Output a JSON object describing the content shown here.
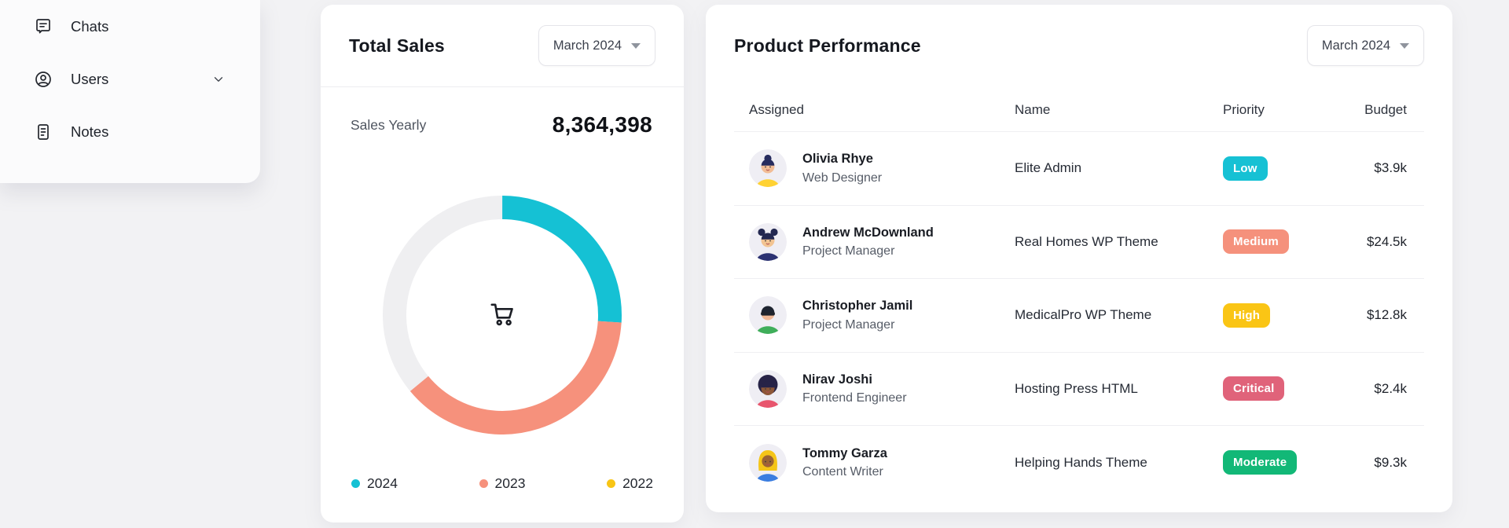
{
  "page": {
    "background": "#f2f2f4"
  },
  "sidebar": {
    "items": [
      {
        "label": "Chats",
        "icon": "chat-icon",
        "has_chevron": false
      },
      {
        "label": "Users",
        "icon": "user-circle-icon",
        "has_chevron": true
      },
      {
        "label": "Notes",
        "icon": "notes-icon",
        "has_chevron": false
      }
    ]
  },
  "total_sales": {
    "title": "Total Sales",
    "period_selector": "March 2024",
    "metric_label": "Sales Yearly",
    "metric_value": "8,364,398",
    "center_icon": "shopping-cart-icon"
  },
  "chart_data": {
    "type": "donut",
    "title": "Total Sales",
    "start_angle_deg": 0,
    "legend_position": "bottom",
    "segments": [
      {
        "label": "2024",
        "value_pct": 26,
        "color": "#15c1d4",
        "legend_color": "#15c1d4"
      },
      {
        "label": "2023",
        "value_pct": 38,
        "color": "#f6917c",
        "legend_color": "#f6917c"
      },
      {
        "label": "2022",
        "value_pct": 36,
        "color": "#efeff1",
        "legend_color": "#f8c515"
      }
    ]
  },
  "product_performance": {
    "title": "Product Performance",
    "period_selector": "March 2024",
    "columns": [
      "Assigned",
      "Name",
      "Priority",
      "Budget"
    ],
    "rows": [
      {
        "assignee": "Olivia Rhye",
        "role": "Web Designer",
        "product": "Elite Admin",
        "priority": "Low",
        "priority_color": "#16c1d4",
        "budget": "$3.9k",
        "avatar": {
          "style": "bun",
          "bg": "#efeef4",
          "skin": "#f2bd96",
          "hair": "#272c5e",
          "shirt": "#ffd233"
        }
      },
      {
        "assignee": "Andrew McDownland",
        "role": "Project Manager",
        "product": "Real Homes WP Theme",
        "priority": "Medium",
        "priority_color": "#f5917c",
        "budget": "$24.5k",
        "avatar": {
          "style": "buns",
          "bg": "#efeef4",
          "skin": "#f2c492",
          "hair": "#232850",
          "shirt": "#2c3272"
        }
      },
      {
        "assignee": "Christopher Jamil",
        "role": "Project Manager",
        "product": "MedicalPro WP Theme",
        "priority": "High",
        "priority_color": "#fac515",
        "budget": "$12.8k",
        "avatar": {
          "style": "glasses",
          "bg": "#efeef4",
          "skin": "#f0b896",
          "hair": "#1e2430",
          "shirt": "#3fae5a"
        }
      },
      {
        "assignee": "Nirav Joshi",
        "role": "Frontend Engineer",
        "product": "Hosting Press HTML",
        "priority": "Critical",
        "priority_color": "#e0637a",
        "budget": "$2.4k",
        "avatar": {
          "style": "afro",
          "bg": "#efeef4",
          "skin": "#8d5738",
          "hair": "#272347",
          "shirt": "#e8556d"
        }
      },
      {
        "assignee": "Tommy Garza",
        "role": "Content Writer",
        "product": "Helping Hands Theme",
        "priority": "Moderate",
        "priority_color": "#12b877",
        "budget": "$9.3k",
        "avatar": {
          "style": "hijab",
          "bg": "#efeef4",
          "skin": "#9c6434",
          "hair": "#f5c518",
          "shirt": "#3a7de0"
        }
      }
    ]
  }
}
